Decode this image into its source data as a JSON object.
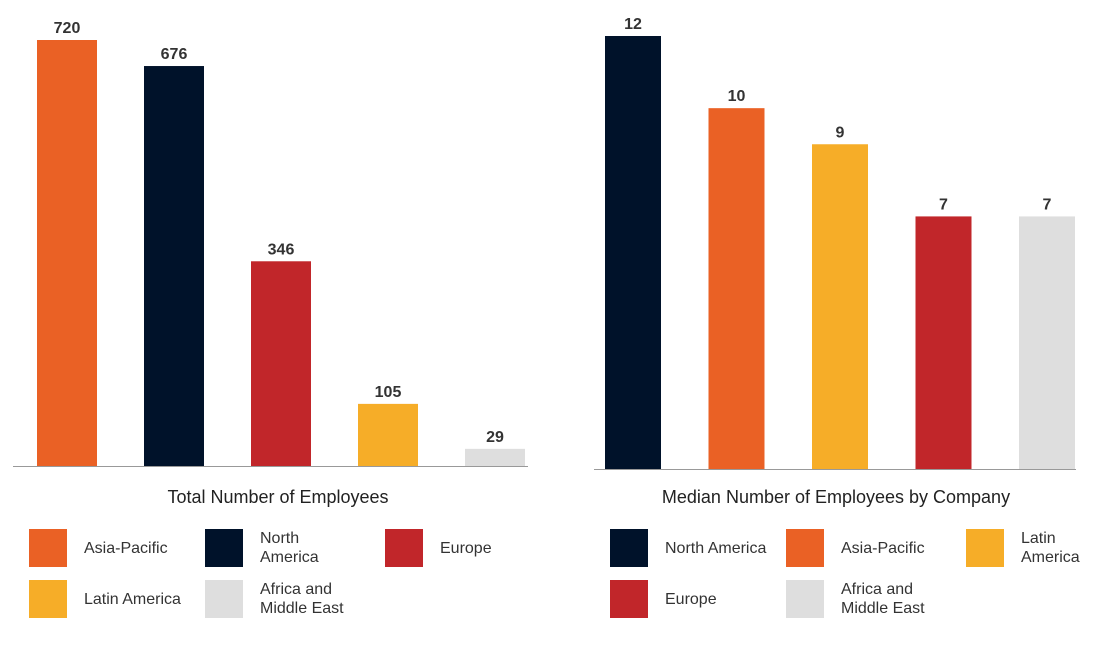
{
  "colors": {
    "Asia-Pacific": "#ea6125",
    "North America": "#00122a",
    "Europe": "#c1262a",
    "Latin America": "#f6ad28",
    "Africa and Middle East": "#dedede",
    "axis": "#999999"
  },
  "chart_data": [
    {
      "type": "bar",
      "title": "Total Number of Employees",
      "categories": [
        "Asia-Pacific",
        "North America",
        "Europe",
        "Latin America",
        "Africa and Middle East"
      ],
      "values": [
        720,
        676,
        346,
        105,
        29
      ],
      "ylim": [
        0,
        720
      ],
      "grid": false,
      "legend_position": "bottom",
      "legend": [
        {
          "label": "Asia-Pacific",
          "color": "#ea6125"
        },
        {
          "label": "North\nAmerica",
          "color": "#00122a"
        },
        {
          "label": "Europe",
          "color": "#c1262a"
        },
        {
          "label": "Latin America",
          "color": "#f6ad28"
        },
        {
          "label": "Africa and\nMiddle East",
          "color": "#dedede"
        }
      ]
    },
    {
      "type": "bar",
      "title": "Median Number of Employees by Company",
      "categories": [
        "North America",
        "Asia-Pacific",
        "Latin America",
        "Europe",
        "Africa and Middle East"
      ],
      "values": [
        12,
        10,
        9,
        7,
        7
      ],
      "ylim": [
        0,
        12
      ],
      "grid": false,
      "legend_position": "bottom",
      "legend": [
        {
          "label": "North America",
          "color": "#00122a"
        },
        {
          "label": "Asia-Pacific",
          "color": "#ea6125"
        },
        {
          "label": "Latin\nAmerica",
          "color": "#f6ad28"
        },
        {
          "label": "Europe",
          "color": "#c1262a"
        },
        {
          "label": "Africa and\nMiddle East",
          "color": "#dedede"
        }
      ]
    }
  ]
}
